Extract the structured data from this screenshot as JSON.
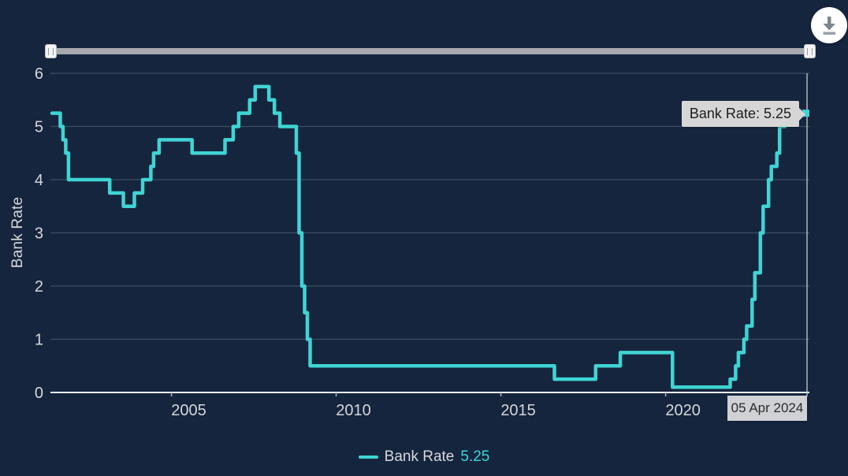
{
  "colors": {
    "background": "#16253e",
    "line": "#3fd4d3",
    "grid": "#3d4d63",
    "axis_line": "#e8eaec",
    "tick": "#aab1b9",
    "text": "#d4d7da",
    "crosshair": "#c7ccd2",
    "tooltip_bg": "#d6d6d6",
    "tooltip_text": "#1d1d1d",
    "slider_track": "#a6a9ad",
    "handle_bg": "#f4f4f4",
    "download_icon_color": "#7d868e"
  },
  "icons": {
    "download": "download-arrow-icon",
    "slider_grip": "grip-lines-icon"
  },
  "tooltip": {
    "text": "Bank Rate: 5.25"
  },
  "crosshair": {
    "date_label": "05 Apr 2024"
  },
  "legend": {
    "series_label": "Bank Rate",
    "value": "5.25"
  },
  "chart_data": {
    "type": "line",
    "step": true,
    "title": "",
    "xlabel": "",
    "ylabel": "Bank Rate",
    "ylim": [
      0,
      6
    ],
    "yticks": [
      0,
      1,
      2,
      3,
      4,
      5,
      6
    ],
    "xticks": [
      2005,
      2010,
      2015,
      2020
    ],
    "grid": true,
    "legend_position": "bottom-center",
    "end_value": 5.25,
    "end_date_label": "05 Apr 2024",
    "series": [
      {
        "name": "Bank Rate",
        "color": "#3fd4d3",
        "points": [
          [
            "2001-05",
            5.25
          ],
          [
            "2001-08",
            5.0
          ],
          [
            "2001-09",
            4.75
          ],
          [
            "2001-10",
            4.5
          ],
          [
            "2001-11",
            4.0
          ],
          [
            "2003-02",
            3.75
          ],
          [
            "2003-07",
            3.5
          ],
          [
            "2003-11",
            3.75
          ],
          [
            "2004-02",
            4.0
          ],
          [
            "2004-05",
            4.25
          ],
          [
            "2004-06",
            4.5
          ],
          [
            "2004-08",
            4.75
          ],
          [
            "2005-08",
            4.5
          ],
          [
            "2006-08",
            4.75
          ],
          [
            "2006-11",
            5.0
          ],
          [
            "2007-01",
            5.25
          ],
          [
            "2007-05",
            5.5
          ],
          [
            "2007-07",
            5.75
          ],
          [
            "2007-12",
            5.5
          ],
          [
            "2008-02",
            5.25
          ],
          [
            "2008-04",
            5.0
          ],
          [
            "2008-10",
            4.5
          ],
          [
            "2008-11",
            3.0
          ],
          [
            "2008-12",
            2.0
          ],
          [
            "2009-01",
            1.5
          ],
          [
            "2009-02",
            1.0
          ],
          [
            "2009-03",
            0.5
          ],
          [
            "2016-08",
            0.25
          ],
          [
            "2017-11",
            0.5
          ],
          [
            "2018-08",
            0.75
          ],
          [
            "2020-03",
            0.25
          ],
          [
            "2020-03",
            0.1
          ],
          [
            "2021-12",
            0.25
          ],
          [
            "2022-02",
            0.5
          ],
          [
            "2022-03",
            0.75
          ],
          [
            "2022-05",
            1.0
          ],
          [
            "2022-06",
            1.25
          ],
          [
            "2022-08",
            1.75
          ],
          [
            "2022-09",
            2.25
          ],
          [
            "2022-11",
            3.0
          ],
          [
            "2022-12",
            3.5
          ],
          [
            "2023-02",
            4.0
          ],
          [
            "2023-03",
            4.25
          ],
          [
            "2023-05",
            4.5
          ],
          [
            "2023-06",
            5.0
          ],
          [
            "2023-08",
            5.25
          ],
          [
            "2024-04",
            5.25
          ]
        ]
      }
    ]
  }
}
